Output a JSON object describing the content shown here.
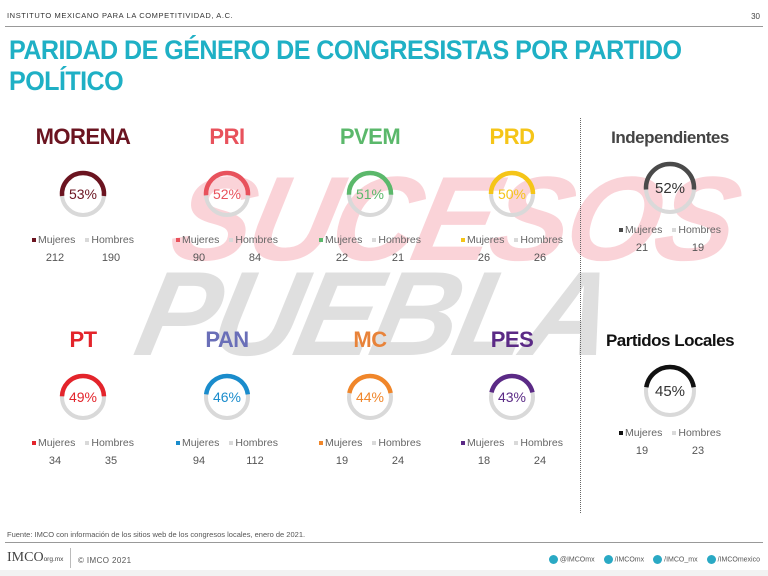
{
  "header": {
    "org": "INSTITUTO MEXICANO PARA LA COMPETITIVIDAD, A.C.",
    "page": "30"
  },
  "title": "PARIDAD DE GÉNERO DE CONGRESISTAS POR PARTIDO POLÍTICO",
  "watermark": {
    "line1": "SUCESOS",
    "line2": "PUEBLA"
  },
  "legend": {
    "women": "Mujeres",
    "men": "Hombres"
  },
  "colors": {
    "title": "#1fb0c5",
    "men": "#d9d9d9"
  },
  "parties": [
    {
      "name": "MORENA",
      "pct": "53%",
      "value": 53,
      "women": "212",
      "men": "190",
      "color": "#6b1420",
      "title_color": "#6b1420"
    },
    {
      "name": "PRI",
      "pct": "52%",
      "value": 52,
      "women": "90",
      "men": "84",
      "color": "#e8525c",
      "title_color": "#e8525c"
    },
    {
      "name": "PVEM",
      "pct": "51%",
      "value": 51,
      "women": "22",
      "men": "21",
      "color": "#5bb86b",
      "title_color": "#5bb86b"
    },
    {
      "name": "PRD",
      "pct": "50%",
      "value": 50,
      "women": "26",
      "men": "26",
      "color": "#f5c518",
      "title_color": "#f5c518"
    },
    {
      "name": "Independientes",
      "pct": "52%",
      "value": 52,
      "women": "21",
      "men": "19",
      "color": "#4a4a4a",
      "title_color": "#444444"
    },
    {
      "name": "PT",
      "pct": "49%",
      "value": 49,
      "women": "34",
      "men": "35",
      "color": "#e3242b",
      "title_color": "#e3242b"
    },
    {
      "name": "PAN",
      "pct": "46%",
      "value": 46,
      "women": "94",
      "men": "112",
      "color": "#1a8ccc",
      "title_color": "#6a6fb8"
    },
    {
      "name": "MC",
      "pct": "44%",
      "value": 44,
      "women": "19",
      "men": "24",
      "color": "#f0862a",
      "title_color": "#e8833a"
    },
    {
      "name": "PES",
      "pct": "43%",
      "value": 43,
      "women": "18",
      "men": "24",
      "color": "#5b2a86",
      "title_color": "#5b2a86"
    },
    {
      "name": "Partidos Locales",
      "pct": "45%",
      "value": 45,
      "women": "19",
      "men": "23",
      "color": "#111111",
      "title_color": "#111111"
    }
  ],
  "footer": {
    "source": "Fuente: IMCO con información de los sitios web de los congresos locales, enero de 2021.",
    "logo": "IMCO",
    "logo_suffix": "org.mx",
    "copyright": "© IMCO 2021",
    "social": [
      "@IMCOmx",
      "/IMCOmx",
      "/IMCO_mx",
      "/IMCOmexico"
    ]
  }
}
